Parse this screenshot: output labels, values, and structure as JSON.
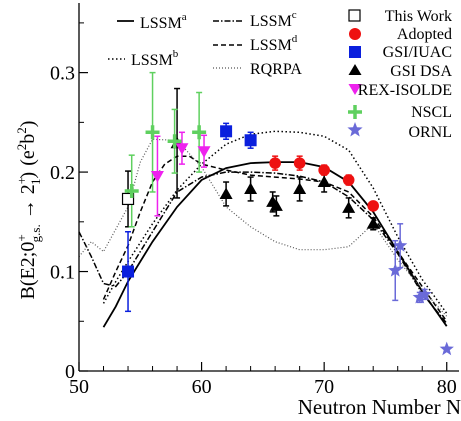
{
  "chart_data": {
    "type": "scatter",
    "title": "",
    "xlabel": "Neutron Number N",
    "ylabel": "B(E2;0⁺g.s. → 2⁺₁) (e²b²)",
    "ylabel_parts": {
      "main": "B(E2;0",
      "sup1": "+",
      "sub1": "g.s.",
      "arrow": " → 2",
      "sup2": "+",
      "sub2": "1",
      "close": ")",
      "unit": "(e",
      "sup3": "2",
      "unit2": "b",
      "sup4": "2",
      "unit_close": ")"
    },
    "xlim": [
      50,
      81
    ],
    "ylim": [
      0,
      0.37
    ],
    "x_ticks": [
      50,
      60,
      70,
      80
    ],
    "x_tick_labels": [
      "50",
      "60",
      "70",
      "80"
    ],
    "y_ticks": [
      0,
      0.1,
      0.2,
      0.3
    ],
    "y_tick_labels": [
      "0",
      "0.1",
      "0.2",
      "0.3"
    ],
    "grid": false,
    "legend_placement": "top",
    "legend": {
      "lines": [
        {
          "key": "lssm_a",
          "base": "LSSM",
          "sup": "a"
        },
        {
          "key": "lssm_b",
          "base": "LSSM",
          "sup": "b"
        },
        {
          "key": "lssm_c",
          "base": "LSSM",
          "sup": "c"
        },
        {
          "key": "lssm_d",
          "base": "LSSM",
          "sup": "d"
        },
        {
          "key": "rqrpa",
          "base": "RQRPA",
          "sup": ""
        }
      ],
      "markers": [
        {
          "key": "this_work",
          "label": "This Work"
        },
        {
          "key": "adopted",
          "label": "Adopted"
        },
        {
          "key": "gsi_iuac",
          "label": "GSI/IUAC"
        },
        {
          "key": "gsi_dsa",
          "label": "GSI DSA"
        },
        {
          "key": "rex_isolde",
          "label": "REX-ISOLDE"
        },
        {
          "key": "nscl",
          "label": "NSCL"
        },
        {
          "key": "ornl",
          "label": "ORNL"
        }
      ]
    },
    "colors": {
      "curve": "#000000",
      "rqrpa": "#555555",
      "this_work": "#000000",
      "adopted": "#ee1111",
      "gsi_iuac": "#0a1fdd",
      "gsi_dsa": "#000000",
      "rex_isolde": "#ee22ee",
      "nscl": "#5fd05f",
      "ornl": "#6a6ad8"
    },
    "curves": [
      {
        "key": "lssm_a",
        "dash": "solid",
        "x": [
          52,
          53,
          54,
          56,
          58,
          60,
          62,
          64,
          66,
          68,
          70,
          72,
          74,
          76,
          78,
          80
        ],
        "y": [
          0.044,
          0.065,
          0.09,
          0.13,
          0.165,
          0.192,
          0.204,
          0.209,
          0.21,
          0.21,
          0.205,
          0.19,
          0.16,
          0.12,
          0.08,
          0.045
        ]
      },
      {
        "key": "lssm_b",
        "dash": "dotted",
        "x": [
          52,
          53,
          54,
          56,
          58,
          60,
          62,
          64,
          66,
          68,
          70,
          72,
          74,
          76,
          78,
          80
        ],
        "y": [
          0.068,
          0.09,
          0.11,
          0.148,
          0.182,
          0.208,
          0.228,
          0.238,
          0.241,
          0.24,
          0.236,
          0.222,
          0.184,
          0.135,
          0.092,
          0.058
        ]
      },
      {
        "key": "lssm_c",
        "dash": "dashdot",
        "x": [
          50,
          51,
          52,
          53,
          54,
          56,
          58,
          60,
          62,
          64,
          66,
          68,
          70,
          72,
          74,
          76,
          78,
          80
        ],
        "y": [
          0.14,
          0.115,
          0.088,
          0.085,
          0.1,
          0.14,
          0.18,
          0.195,
          0.2,
          0.2,
          0.199,
          0.196,
          0.19,
          0.175,
          0.152,
          0.118,
          0.078,
          0.048
        ]
      },
      {
        "key": "lssm_d",
        "dash": "dashed",
        "x": [
          52,
          53,
          54,
          55,
          56,
          57,
          58,
          59,
          60,
          62,
          64,
          66,
          68,
          70,
          72,
          74,
          76,
          78,
          80
        ],
        "y": [
          0.072,
          0.1,
          0.126,
          0.16,
          0.19,
          0.208,
          0.216,
          0.216,
          0.208,
          0.202,
          0.197,
          0.195,
          0.193,
          0.19,
          0.18,
          0.155,
          0.12,
          0.085,
          0.05
        ]
      },
      {
        "key": "rqrpa",
        "dash": "finedot",
        "x": [
          50,
          51,
          52,
          54,
          55,
          56,
          58,
          60,
          62,
          64,
          66,
          68,
          70,
          72,
          74,
          76,
          78,
          80
        ],
        "y": [
          0.115,
          0.13,
          0.12,
          0.165,
          0.21,
          0.233,
          0.232,
          0.205,
          0.165,
          0.145,
          0.13,
          0.122,
          0.122,
          0.125,
          0.148,
          0.112,
          0.082,
          0.055
        ]
      }
    ],
    "points": [
      {
        "series": "this_work",
        "marker": "square-open",
        "x": 54,
        "y": 0.173,
        "err": 0.028
      },
      {
        "series": "adopted",
        "marker": "circle",
        "x": 66,
        "y": 0.209,
        "err": 0.007
      },
      {
        "series": "adopted",
        "marker": "circle",
        "x": 68,
        "y": 0.209,
        "err": 0.007
      },
      {
        "series": "adopted",
        "marker": "circle",
        "x": 70,
        "y": 0.202,
        "err": 0.005
      },
      {
        "series": "adopted",
        "marker": "circle",
        "x": 72,
        "y": 0.192,
        "err": 0.005
      },
      {
        "series": "adopted",
        "marker": "circle",
        "x": 74,
        "y": 0.166,
        "err": 0.004
      },
      {
        "series": "gsi_iuac",
        "marker": "square",
        "x": 54,
        "y": 0.1,
        "err": 0.04
      },
      {
        "series": "gsi_iuac",
        "marker": "square",
        "x": 62,
        "y": 0.241,
        "err": 0.008
      },
      {
        "series": "gsi_iuac",
        "marker": "square",
        "x": 64,
        "y": 0.232,
        "err": 0.008
      },
      {
        "series": "gsi_dsa",
        "marker": "triangle-up",
        "x": 58,
        "y": 0.229,
        "err": 0.055
      },
      {
        "series": "gsi_dsa",
        "marker": "triangle-up",
        "x": 62,
        "y": 0.178,
        "err": 0.012
      },
      {
        "series": "gsi_dsa",
        "marker": "triangle-up",
        "x": 64,
        "y": 0.183,
        "err": 0.012
      },
      {
        "series": "gsi_dsa",
        "marker": "triangle-up",
        "x": 65.8,
        "y": 0.17,
        "err": 0.01
      },
      {
        "series": "gsi_dsa",
        "marker": "triangle-up",
        "x": 66.1,
        "y": 0.166,
        "err": 0.01
      },
      {
        "series": "gsi_dsa",
        "marker": "triangle-up",
        "x": 68,
        "y": 0.183,
        "err": 0.012
      },
      {
        "series": "gsi_dsa",
        "marker": "triangle-up",
        "x": 70,
        "y": 0.19,
        "err": 0.01
      },
      {
        "series": "gsi_dsa",
        "marker": "triangle-up",
        "x": 72,
        "y": 0.164,
        "err": 0.01
      },
      {
        "series": "gsi_dsa",
        "marker": "triangle-up",
        "x": 74,
        "y": 0.148,
        "err": 0.006
      },
      {
        "series": "rex_isolde",
        "marker": "triangle-down",
        "x": 56.4,
        "y": 0.196,
        "err": 0.04
      },
      {
        "series": "rex_isolde",
        "marker": "triangle-down",
        "x": 58.4,
        "y": 0.224,
        "err": 0.016
      },
      {
        "series": "rex_isolde",
        "marker": "triangle-down",
        "x": 60.2,
        "y": 0.221,
        "err": 0.016
      },
      {
        "series": "nscl",
        "marker": "plus",
        "x": 54.3,
        "y": 0.181,
        "err": 0.036
      },
      {
        "series": "nscl",
        "marker": "plus",
        "x": 56,
        "y": 0.24,
        "err": 0.06
      },
      {
        "series": "nscl",
        "marker": "plus",
        "x": 57.8,
        "y": 0.231,
        "err": 0.032
      },
      {
        "series": "nscl",
        "marker": "plus",
        "x": 59.8,
        "y": 0.24,
        "err": 0.04
      },
      {
        "series": "ornl",
        "marker": "star",
        "x": 75.8,
        "y": 0.101,
        "err": 0.03
      },
      {
        "series": "ornl",
        "marker": "star",
        "x": 76.2,
        "y": 0.126,
        "err": 0.022
      },
      {
        "series": "ornl",
        "marker": "star",
        "x": 77.8,
        "y": 0.074,
        "err": 0.005
      },
      {
        "series": "ornl",
        "marker": "star",
        "x": 78.2,
        "y": 0.077,
        "err": 0.005
      },
      {
        "series": "ornl",
        "marker": "star",
        "x": 80,
        "y": 0.022,
        "err": 0
      }
    ]
  }
}
